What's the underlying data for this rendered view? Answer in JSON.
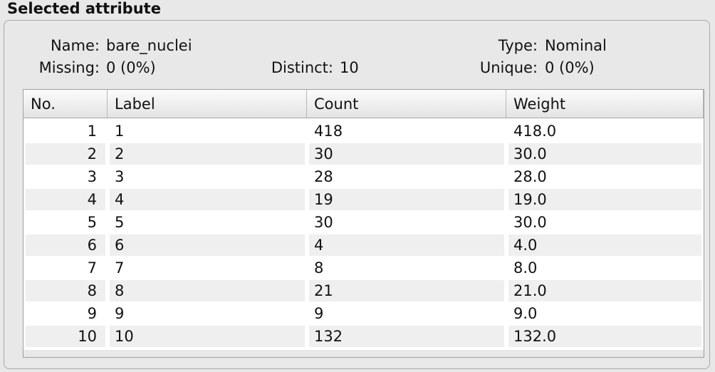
{
  "panel_title": "Selected attribute",
  "info": {
    "name": {
      "label": "Name:",
      "value": "bare_nuclei"
    },
    "type": {
      "label": "Type:",
      "value": "Nominal"
    },
    "missing": {
      "label": "Missing:",
      "value": "0 (0%)"
    },
    "distinct": {
      "label": "Distinct:",
      "value": "10"
    },
    "unique": {
      "label": "Unique:",
      "value": "0 (0%)"
    }
  },
  "table": {
    "columns": [
      "No.",
      "Label",
      "Count",
      "Weight"
    ],
    "rows": [
      [
        1,
        "1",
        418,
        "418.0"
      ],
      [
        2,
        "2",
        30,
        "30.0"
      ],
      [
        3,
        "3",
        28,
        "28.0"
      ],
      [
        4,
        "4",
        19,
        "19.0"
      ],
      [
        5,
        "5",
        30,
        "30.0"
      ],
      [
        6,
        "6",
        4,
        "4.0"
      ],
      [
        7,
        "7",
        8,
        "8.0"
      ],
      [
        8,
        "8",
        21,
        "21.0"
      ],
      [
        9,
        "9",
        9,
        "9.0"
      ],
      [
        10,
        "10",
        132,
        "132.0"
      ]
    ]
  }
}
